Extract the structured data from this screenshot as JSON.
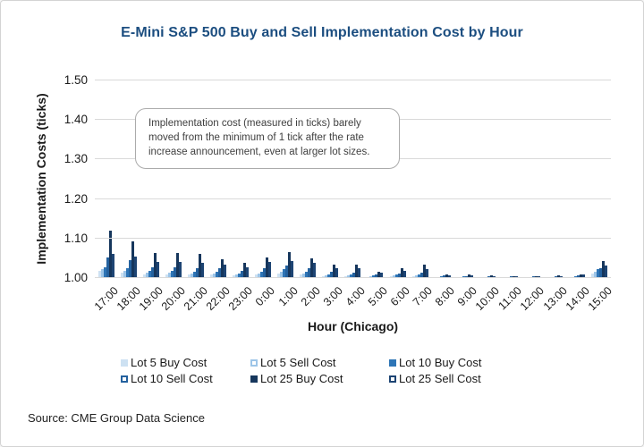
{
  "title": "E-Mini S&P 500 Buy and Sell Implementation Cost by Hour",
  "annotation": "Implementation cost (measured in ticks) barely moved from the minimum of 1 tick after the rate increase announcement, even at larger lot sizes.",
  "source": "Source: CME Group Data Science",
  "colors": {
    "title_blue": "#1c4e80",
    "grid": "#d9d9d9",
    "text": "#1a1a1a"
  },
  "chart_data": {
    "type": "bar",
    "title": "E-Mini S&P 500 Buy and Sell Implementation Cost by Hour",
    "xlabel": "Hour (Chicago)",
    "ylabel": "Implementation Costs (ticks)",
    "ylim": [
      1.0,
      1.5
    ],
    "y_ticks": [
      "1.00",
      "1.10",
      "1.20",
      "1.30",
      "1.40",
      "1.50"
    ],
    "grid": true,
    "legend_position": "bottom",
    "categories": [
      "17:00",
      "18:00",
      "19:00",
      "20:00",
      "21:00",
      "22:00",
      "23:00",
      "0:00",
      "1:00",
      "2:00",
      "3:00",
      "4:00",
      "5:00",
      "6:00",
      "7:00",
      "8:00",
      "9:00",
      "10:00",
      "11:00",
      "12:00",
      "13:00",
      "14:00",
      "15:00"
    ],
    "series": [
      {
        "name": "Lot 5 Buy Cost",
        "color": "#cde1f2",
        "marker": "solid",
        "values": [
          1.018,
          1.013,
          1.01,
          1.01,
          1.008,
          1.008,
          1.006,
          1.008,
          1.012,
          1.008,
          1.005,
          1.005,
          1.003,
          1.004,
          1.005,
          1.002,
          1.002,
          1.001,
          1.001,
          1.001,
          1.001,
          1.002,
          1.012
        ]
      },
      {
        "name": "Lot 5 Sell Cost",
        "color": "#9dc5e8",
        "marker": "outline",
        "values": [
          1.022,
          1.018,
          1.014,
          1.014,
          1.012,
          1.011,
          1.009,
          1.011,
          1.016,
          1.011,
          1.007,
          1.007,
          1.004,
          1.006,
          1.007,
          1.003,
          1.003,
          1.002,
          1.002,
          1.002,
          1.002,
          1.003,
          1.017
        ]
      },
      {
        "name": "Lot 10 Buy Cost",
        "color": "#2e75b6",
        "marker": "solid",
        "values": [
          1.028,
          1.025,
          1.018,
          1.018,
          1.016,
          1.015,
          1.012,
          1.016,
          1.022,
          1.015,
          1.01,
          1.01,
          1.006,
          1.008,
          1.01,
          1.004,
          1.004,
          1.003,
          1.003,
          1.003,
          1.003,
          1.005,
          1.022
        ]
      },
      {
        "name": "Lot 10 Sell Cost",
        "color": "#24619e",
        "marker": "outline",
        "values": [
          1.052,
          1.045,
          1.028,
          1.028,
          1.024,
          1.024,
          1.018,
          1.024,
          1.031,
          1.024,
          1.015,
          1.014,
          1.009,
          1.012,
          1.014,
          1.006,
          1.005,
          1.004,
          1.004,
          1.004,
          1.005,
          1.007,
          1.026
        ]
      },
      {
        "name": "Lot 25 Buy Cost",
        "color": "#16365c",
        "marker": "solid",
        "values": [
          1.12,
          1.092,
          1.064,
          1.064,
          1.062,
          1.047,
          1.039,
          1.053,
          1.066,
          1.05,
          1.034,
          1.035,
          1.017,
          1.024,
          1.033,
          1.009,
          1.008,
          1.006,
          1.005,
          1.005,
          1.006,
          1.01,
          1.044
        ]
      },
      {
        "name": "Lot 25 Sell Cost",
        "color": "#1d4473",
        "marker": "outline",
        "values": [
          1.062,
          1.055,
          1.04,
          1.041,
          1.038,
          1.034,
          1.028,
          1.04,
          1.042,
          1.038,
          1.026,
          1.024,
          1.013,
          1.018,
          1.022,
          1.007,
          1.006,
          1.005,
          1.004,
          1.004,
          1.005,
          1.008,
          1.032
        ]
      }
    ]
  }
}
